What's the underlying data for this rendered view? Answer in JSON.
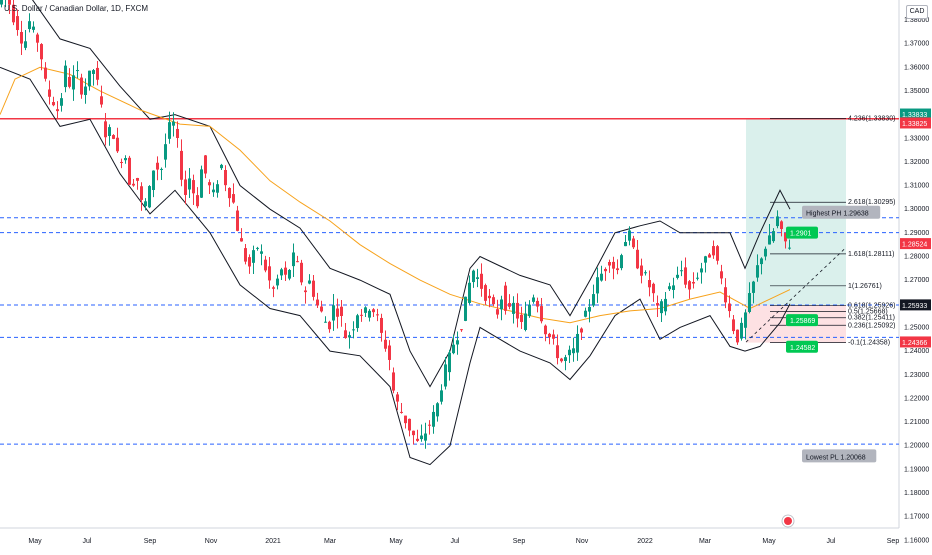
{
  "header": {
    "title": "U.S. Dollar / Canadian Dollar, 1D, FXCM",
    "currency": "CAD"
  },
  "chart_data": {
    "type": "candlestick",
    "symbol": "U.S. Dollar / Canadian Dollar",
    "interval": "1D",
    "source": "FXCM",
    "ylim": [
      1.155,
      1.39
    ],
    "x_ticks": [
      "May",
      "Jul",
      "Sep",
      "Nov",
      "2021",
      "Mar",
      "May",
      "Jul",
      "Sep",
      "Nov",
      "2022",
      "Mar",
      "May",
      "Jul",
      "Sep"
    ],
    "y_ticks": [
      1.38,
      1.37,
      1.36,
      1.35,
      1.34,
      1.33,
      1.32,
      1.31,
      1.3,
      1.29,
      1.28,
      1.27,
      1.26,
      1.25,
      1.24,
      1.23,
      1.22,
      1.21,
      1.2,
      1.19,
      1.18,
      1.17,
      1.16
    ],
    "y_tick_labels": [
      "1.38000",
      "1.37000",
      "1.36000",
      "1.35000",
      "1.34000",
      "1.33000",
      "1.32000",
      "1.31000",
      "1.30000",
      "1.29000",
      "1.28000",
      "1.27000",
      "1.26000",
      "1.25000",
      "1.24000",
      "1.23000",
      "1.22000",
      "1.21000",
      "1.20000",
      "1.19000",
      "1.18000",
      "1.17000",
      "1.16000"
    ],
    "price_path": [
      [
        0,
        1.3866
      ],
      [
        7,
        1.393
      ],
      [
        14,
        1.3825
      ],
      [
        22,
        1.375
      ],
      [
        26,
        1.366
      ],
      [
        29,
        1.382
      ],
      [
        34,
        1.375
      ],
      [
        41,
        1.37
      ],
      [
        48,
        1.35
      ],
      [
        56,
        1.345
      ],
      [
        61,
        1.34
      ],
      [
        66,
        1.36
      ],
      [
        72,
        1.352
      ],
      [
        78,
        1.358
      ],
      [
        84,
        1.35
      ],
      [
        90,
        1.355
      ],
      [
        96,
        1.36
      ],
      [
        102,
        1.345
      ],
      [
        108,
        1.33
      ],
      [
        114,
        1.335
      ],
      [
        120,
        1.32
      ],
      [
        126,
        1.325
      ],
      [
        132,
        1.31
      ],
      [
        138,
        1.315
      ],
      [
        144,
        1.3
      ],
      [
        150,
        1.305
      ],
      [
        156,
        1.32
      ],
      [
        162,
        1.315
      ],
      [
        168,
        1.33
      ],
      [
        174,
        1.338
      ],
      [
        180,
        1.325
      ],
      [
        186,
        1.305
      ],
      [
        192,
        1.315
      ],
      [
        198,
        1.3
      ],
      [
        204,
        1.32
      ],
      [
        210,
        1.31
      ],
      [
        216,
        1.305
      ],
      [
        222,
        1.32
      ],
      [
        228,
        1.31
      ],
      [
        234,
        1.305
      ],
      [
        240,
        1.29
      ],
      [
        246,
        1.28
      ],
      [
        252,
        1.275
      ],
      [
        258,
        1.285
      ],
      [
        264,
        1.28
      ],
      [
        270,
        1.27
      ],
      [
        276,
        1.265
      ],
      [
        282,
        1.275
      ],
      [
        288,
        1.27
      ],
      [
        294,
        1.28
      ],
      [
        300,
        1.275
      ],
      [
        306,
        1.265
      ],
      [
        312,
        1.27
      ],
      [
        318,
        1.26
      ],
      [
        324,
        1.255
      ],
      [
        330,
        1.25
      ],
      [
        336,
        1.26
      ],
      [
        342,
        1.255
      ],
      [
        348,
        1.245
      ],
      [
        354,
        1.25
      ],
      [
        360,
        1.258
      ],
      [
        366,
        1.255
      ],
      [
        372,
        1.26
      ],
      [
        378,
        1.255
      ],
      [
        384,
        1.245
      ],
      [
        390,
        1.24
      ],
      [
        396,
        1.22
      ],
      [
        402,
        1.215
      ],
      [
        408,
        1.21
      ],
      [
        414,
        1.205
      ],
      [
        420,
        1.2
      ],
      [
        426,
        1.205
      ],
      [
        432,
        1.21
      ],
      [
        438,
        1.215
      ],
      [
        444,
        1.228
      ],
      [
        450,
        1.235
      ],
      [
        456,
        1.245
      ],
      [
        462,
        1.25
      ],
      [
        468,
        1.262
      ],
      [
        474,
        1.275
      ],
      [
        480,
        1.27
      ],
      [
        486,
        1.265
      ],
      [
        492,
        1.26
      ],
      [
        498,
        1.255
      ],
      [
        504,
        1.265
      ],
      [
        510,
        1.255
      ],
      [
        516,
        1.26
      ],
      [
        522,
        1.25
      ],
      [
        528,
        1.255
      ],
      [
        534,
        1.265
      ],
      [
        540,
        1.26
      ],
      [
        546,
        1.25
      ],
      [
        552,
        1.245
      ],
      [
        558,
        1.24
      ],
      [
        564,
        1.235
      ],
      [
        570,
        1.238
      ],
      [
        576,
        1.24
      ],
      [
        582,
        1.25
      ],
      [
        588,
        1.255
      ],
      [
        594,
        1.265
      ],
      [
        600,
        1.27
      ],
      [
        606,
        1.275
      ],
      [
        612,
        1.28
      ],
      [
        618,
        1.272
      ],
      [
        624,
        1.285
      ],
      [
        630,
        1.29
      ],
      [
        636,
        1.28
      ],
      [
        642,
        1.275
      ],
      [
        648,
        1.27
      ],
      [
        654,
        1.265
      ],
      [
        660,
        1.255
      ],
      [
        666,
        1.262
      ],
      [
        672,
        1.268
      ],
      [
        678,
        1.27
      ],
      [
        684,
        1.275
      ],
      [
        690,
        1.265
      ],
      [
        696,
        1.27
      ],
      [
        702,
        1.275
      ],
      [
        708,
        1.278
      ],
      [
        714,
        1.285
      ],
      [
        720,
        1.275
      ],
      [
        726,
        1.265
      ],
      [
        732,
        1.255
      ],
      [
        738,
        1.245
      ],
      [
        744,
        1.25
      ],
      [
        750,
        1.26
      ],
      [
        756,
        1.27
      ],
      [
        762,
        1.28
      ],
      [
        768,
        1.285
      ],
      [
        774,
        1.288
      ],
      [
        778,
        1.298
      ],
      [
        782,
        1.29
      ],
      [
        786,
        1.286
      ],
      [
        790,
        1.2852
      ]
    ],
    "sma_path": [
      [
        0,
        1.34
      ],
      [
        15,
        1.355
      ],
      [
        40,
        1.36
      ],
      [
        70,
        1.357
      ],
      [
        100,
        1.35
      ],
      [
        140,
        1.342
      ],
      [
        180,
        1.336
      ],
      [
        210,
        1.335
      ],
      [
        240,
        1.325
      ],
      [
        270,
        1.312
      ],
      [
        300,
        1.303
      ],
      [
        330,
        1.295
      ],
      [
        360,
        1.285
      ],
      [
        390,
        1.277
      ],
      [
        420,
        1.27
      ],
      [
        450,
        1.264
      ],
      [
        480,
        1.26
      ],
      [
        510,
        1.257
      ],
      [
        540,
        1.254
      ],
      [
        570,
        1.252
      ],
      [
        600,
        1.255
      ],
      [
        630,
        1.257
      ],
      [
        660,
        1.258
      ],
      [
        690,
        1.262
      ],
      [
        720,
        1.265
      ],
      [
        750,
        1.258
      ],
      [
        770,
        1.262
      ],
      [
        790,
        1.266
      ]
    ],
    "bb_upper": [
      [
        0,
        1.4
      ],
      [
        30,
        1.39
      ],
      [
        60,
        1.372
      ],
      [
        90,
        1.368
      ],
      [
        120,
        1.352
      ],
      [
        150,
        1.338
      ],
      [
        175,
        1.34
      ],
      [
        210,
        1.335
      ],
      [
        240,
        1.31
      ],
      [
        270,
        1.3
      ],
      [
        300,
        1.292
      ],
      [
        330,
        1.275
      ],
      [
        360,
        1.27
      ],
      [
        390,
        1.264
      ],
      [
        410,
        1.24
      ],
      [
        430,
        1.225
      ],
      [
        450,
        1.24
      ],
      [
        470,
        1.275
      ],
      [
        480,
        1.28
      ],
      [
        500,
        1.276
      ],
      [
        520,
        1.272
      ],
      [
        550,
        1.268
      ],
      [
        570,
        1.255
      ],
      [
        590,
        1.27
      ],
      [
        615,
        1.29
      ],
      [
        640,
        1.293
      ],
      [
        660,
        1.295
      ],
      [
        680,
        1.29
      ],
      [
        710,
        1.29
      ],
      [
        730,
        1.29
      ],
      [
        745,
        1.275
      ],
      [
        760,
        1.29
      ],
      [
        780,
        1.308
      ],
      [
        790,
        1.3
      ]
    ],
    "bb_lower": [
      [
        0,
        1.36
      ],
      [
        30,
        1.355
      ],
      [
        60,
        1.335
      ],
      [
        90,
        1.338
      ],
      [
        120,
        1.315
      ],
      [
        150,
        1.298
      ],
      [
        175,
        1.308
      ],
      [
        210,
        1.29
      ],
      [
        240,
        1.268
      ],
      [
        270,
        1.258
      ],
      [
        300,
        1.255
      ],
      [
        330,
        1.24
      ],
      [
        360,
        1.238
      ],
      [
        390,
        1.225
      ],
      [
        410,
        1.195
      ],
      [
        430,
        1.192
      ],
      [
        450,
        1.2
      ],
      [
        470,
        1.235
      ],
      [
        480,
        1.25
      ],
      [
        500,
        1.245
      ],
      [
        520,
        1.24
      ],
      [
        550,
        1.235
      ],
      [
        570,
        1.228
      ],
      [
        590,
        1.238
      ],
      [
        615,
        1.255
      ],
      [
        640,
        1.262
      ],
      [
        660,
        1.245
      ],
      [
        680,
        1.25
      ],
      [
        710,
        1.255
      ],
      [
        730,
        1.242
      ],
      [
        745,
        1.24
      ],
      [
        760,
        1.242
      ],
      [
        780,
        1.252
      ],
      [
        790,
        1.26
      ]
    ],
    "horizontal_levels": [
      {
        "y": 1.33825,
        "style": "solid",
        "color": "#f23645"
      },
      {
        "y": 1.29638,
        "style": "dashed",
        "color": "#2962ff"
      },
      {
        "y": 1.2901,
        "style": "dashed",
        "color": "#2962ff"
      },
      {
        "y": 1.2595,
        "style": "dashed",
        "color": "#2962ff"
      },
      {
        "y": 1.2458,
        "style": "dashed",
        "color": "#2962ff"
      },
      {
        "y": 1.20068,
        "style": "dashed",
        "color": "#2962ff"
      }
    ],
    "fib_levels": [
      {
        "label": "4.236(1.33830)",
        "y": 1.3383
      },
      {
        "label": "2.618(1.30295)",
        "y": 1.30295
      },
      {
        "label": "1.618(1.28111)",
        "y": 1.28111
      },
      {
        "label": "1(1.26761)",
        "y": 1.26761
      },
      {
        "label": "0.618(1.25926)",
        "y": 1.25926
      },
      {
        "label": "0.5(1.25668)",
        "y": 1.25668
      },
      {
        "label": "0.382(1.25411)",
        "y": 1.25411
      },
      {
        "label": "0.236(1.25092)",
        "y": 1.25092
      },
      {
        "label": "-0.1(1.24358)",
        "y": 1.24358
      }
    ],
    "annotations": [
      {
        "text": "Highest PH 1.29638",
        "x": 802,
        "y": 1.2985
      },
      {
        "text": "Lowest PL 1.20068",
        "x": 802,
        "y": 1.1955
      }
    ],
    "position_tags": [
      {
        "text": "1.2901",
        "y": 1.2901
      },
      {
        "text": "1.25869",
        "y": 1.25311
      },
      {
        "text": "1.24582",
        "y": 1.24182
      }
    ],
    "right_axis_tags": [
      {
        "text": "1.33833",
        "y": 1.34003,
        "color": "#089981"
      },
      {
        "text": "1.33825",
        "y": 1.33625,
        "color": "#f23645"
      },
      {
        "text": "1.28524",
        "y": 1.28524,
        "color": "#f23645"
      },
      {
        "text": "1.25933",
        "y": 1.25933,
        "color": "#131722"
      },
      {
        "text": "1.24366",
        "y": 1.24366,
        "color": "#f23645"
      }
    ]
  }
}
